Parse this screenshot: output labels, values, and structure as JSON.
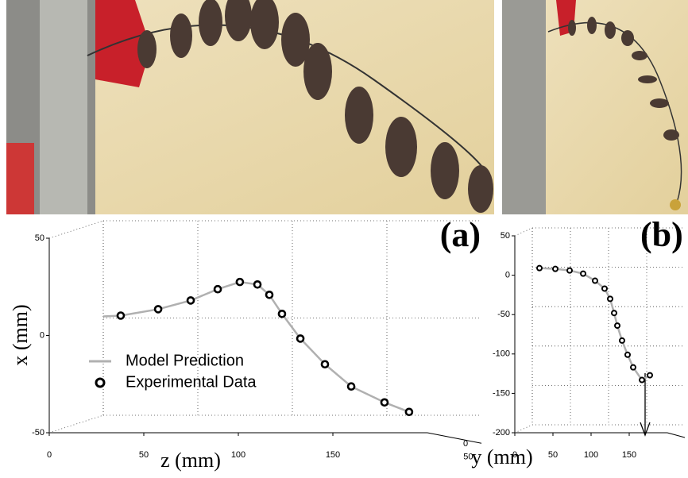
{
  "chart_data": [
    {
      "type": "line",
      "label": "(a)",
      "xlabel": "z (mm)",
      "ylabel": "x (mm)",
      "depth_label": "y (mm)",
      "xlim": [
        0,
        200
      ],
      "xticks": [
        0,
        50,
        100,
        150
      ],
      "ylim": [
        -50,
        50
      ],
      "yticks": [
        -50,
        0,
        50
      ],
      "depth_ticks": [
        0,
        50
      ],
      "grid": true,
      "series": [
        {
          "name": "Model Prediction",
          "color": "#b0b0b0",
          "style": "line",
          "x": [
            28.6,
            37.8,
            57.6,
            74.8,
            89.1,
            100.8,
            110.1,
            116.4,
            123.1,
            132.8,
            145.8,
            159.7,
            177.3,
            190.3
          ],
          "values": [
            9.8,
            10.2,
            13.5,
            18.0,
            23.8,
            27.5,
            26.2,
            20.9,
            11.1,
            -1.6,
            -14.8,
            -26.2,
            -34.4,
            -39.3
          ]
        },
        {
          "name": "Experimental Data",
          "color": "#000000",
          "style": "markers",
          "x": [
            37.8,
            57.6,
            74.8,
            89.1,
            100.8,
            110.1,
            116.4,
            123.1,
            132.8,
            145.8,
            159.7,
            177.3,
            190.3
          ],
          "values": [
            10.2,
            13.5,
            18.0,
            23.8,
            27.5,
            26.2,
            20.9,
            11.1,
            -1.6,
            -14.8,
            -26.2,
            -34.4,
            -39.3
          ]
        }
      ]
    },
    {
      "type": "line",
      "label": "(b)",
      "xlim": [
        0,
        200
      ],
      "xticks": [
        0,
        50,
        100,
        150
      ],
      "ylim": [
        -200,
        50
      ],
      "yticks": [
        -200,
        -150,
        -100,
        -50,
        0,
        50
      ],
      "grid": true,
      "series": [
        {
          "color": "#b0b0b0",
          "style": "line",
          "x": [
            32.3,
            53.1,
            71.9,
            89.6,
            105.2,
            117.7,
            125.0,
            130.2,
            134.4,
            140.6,
            147.9,
            155.2,
            166.7,
            177.1
          ],
          "values": [
            9,
            8,
            6,
            2,
            -7,
            -17,
            -30,
            -48,
            -64,
            -83,
            -101,
            -117,
            -133,
            -127
          ]
        },
        {
          "color": "#000000",
          "style": "markers",
          "x": [
            32.3,
            53.1,
            71.9,
            89.6,
            105.2,
            117.7,
            125.0,
            130.2,
            134.4,
            140.6,
            147.9,
            155.2,
            166.7,
            177.1
          ],
          "values": [
            9,
            8,
            6,
            2,
            -7,
            -17,
            -30,
            -48,
            -64,
            -83,
            -101,
            -117,
            -133,
            -127
          ]
        }
      ]
    }
  ]
}
